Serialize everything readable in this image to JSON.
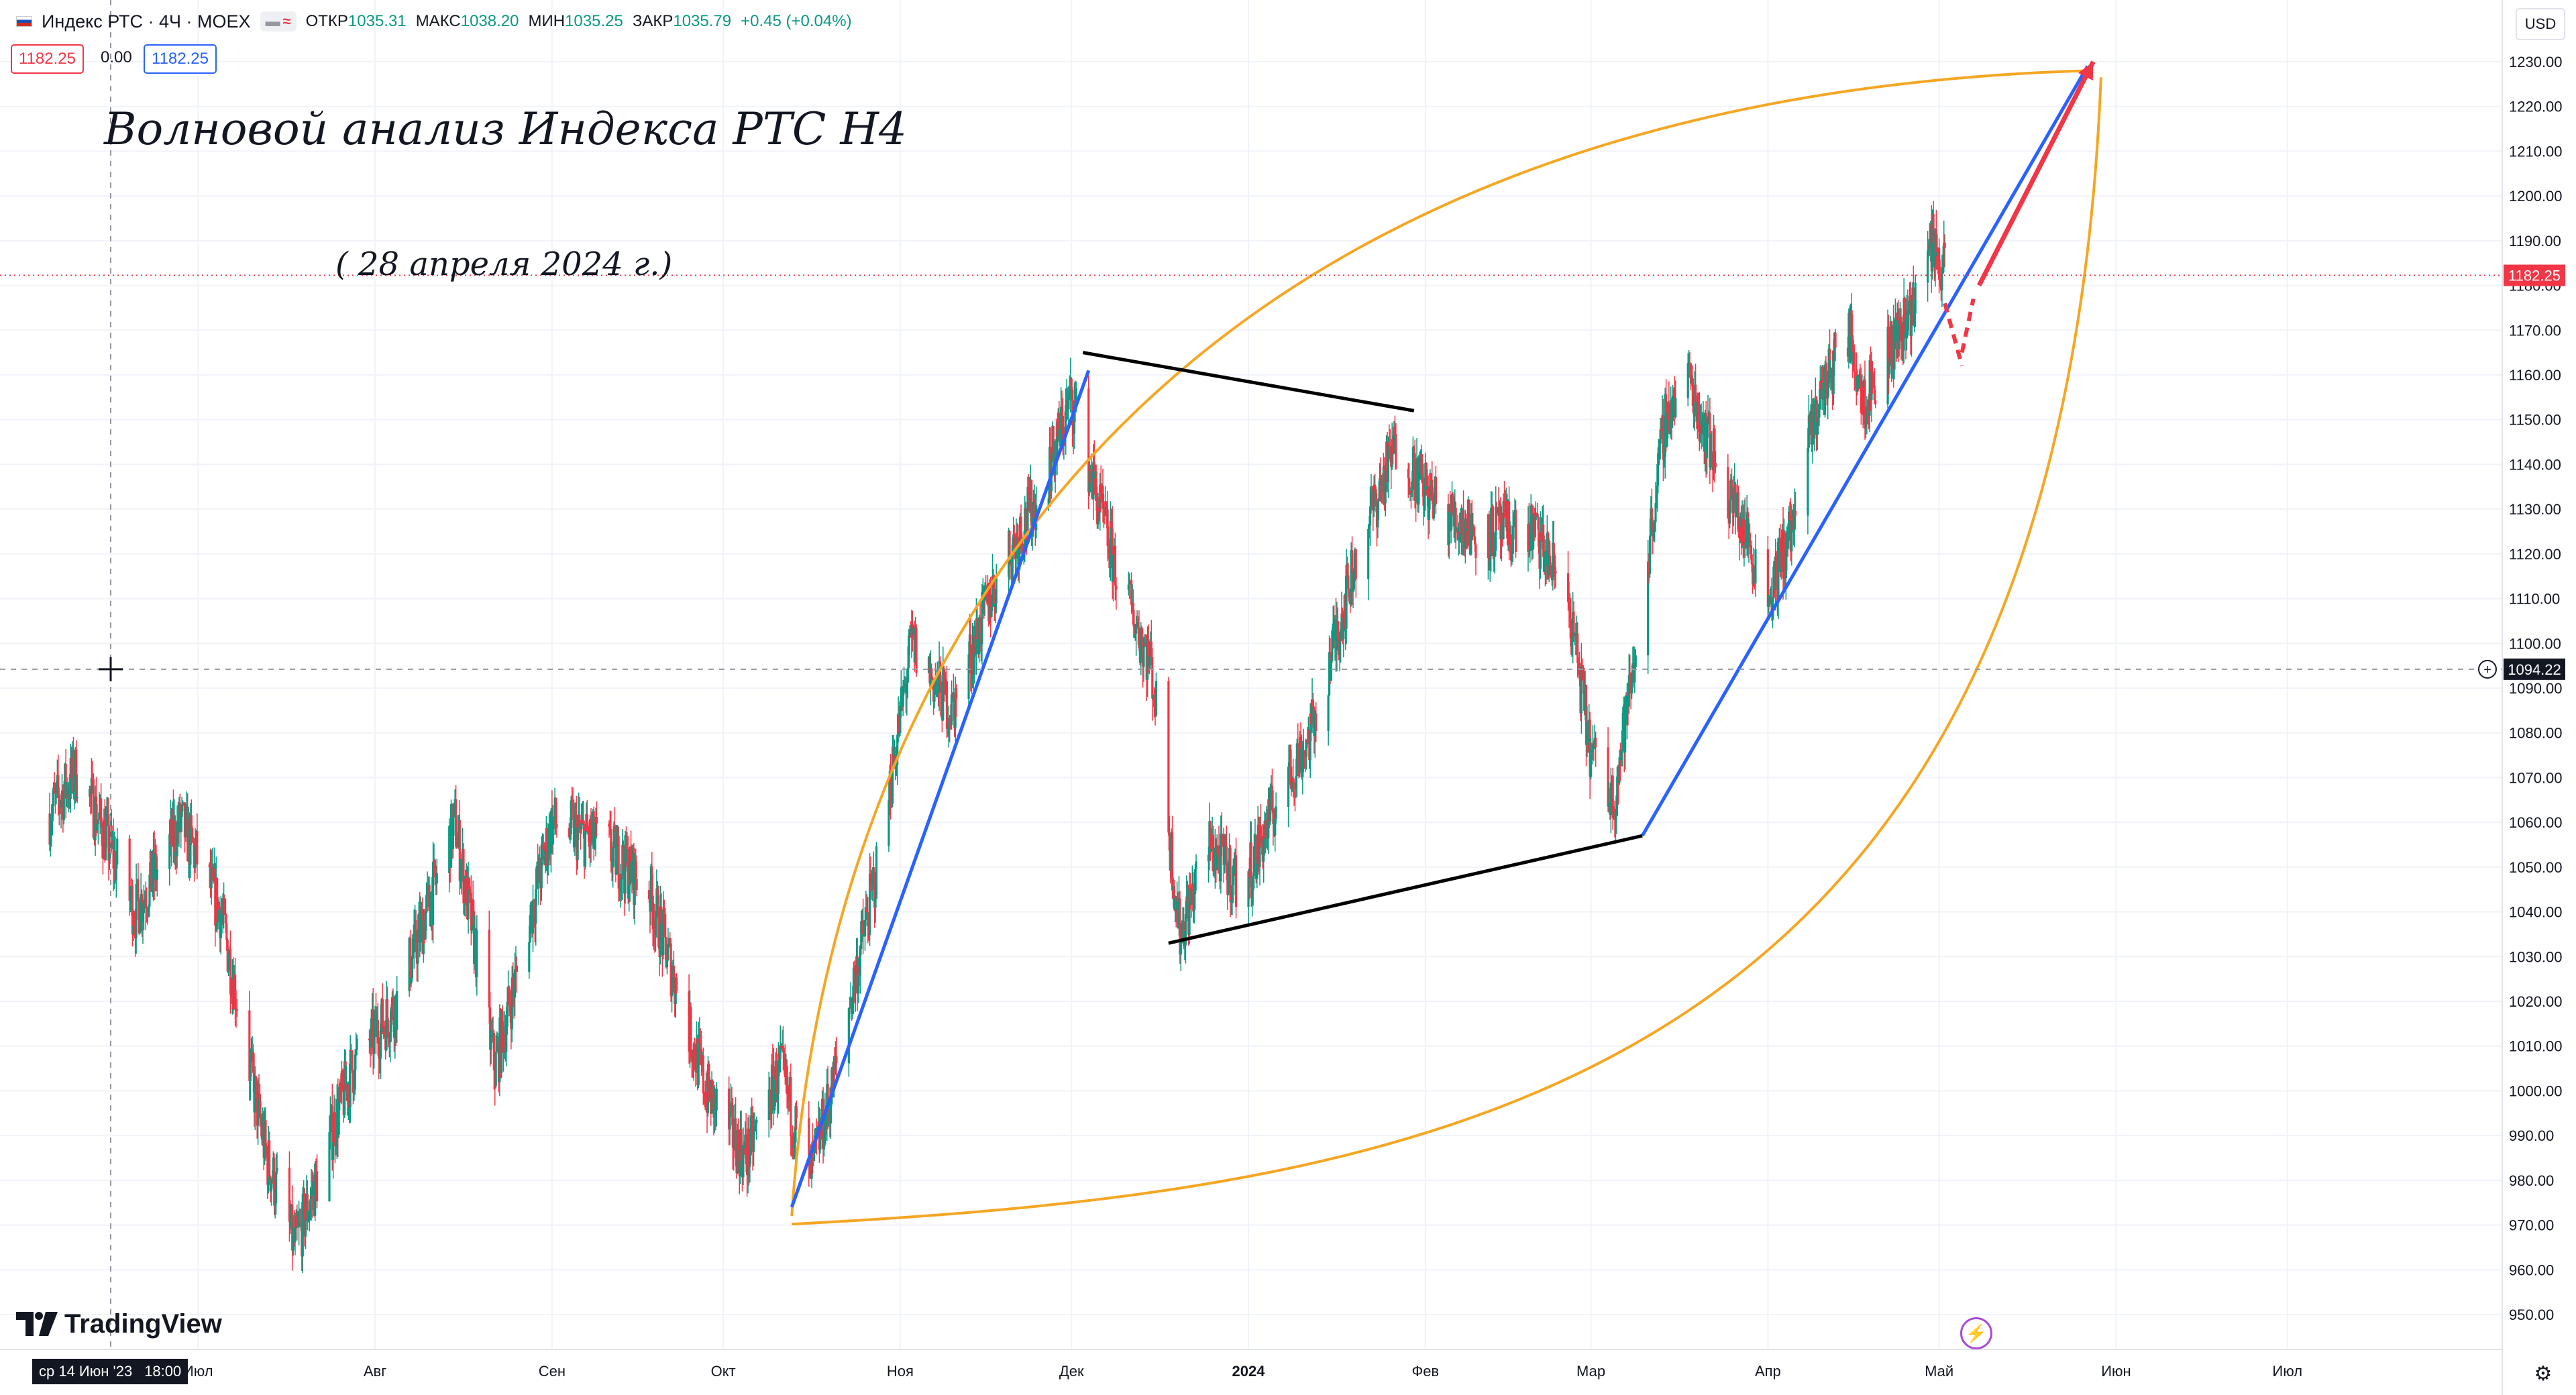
{
  "header": {
    "symbol": "Индекс РТС · 4Ч · MOEX",
    "open_label": "ОТКР",
    "open": "1035.31",
    "high_label": "МАКС",
    "high": "1038.20",
    "low_label": "МИН",
    "low": "1035.25",
    "close_label": "ЗАКР",
    "close": "1035.79",
    "change": "+0.45 (+0.04%)",
    "chip_icons": [
      "minus-icon",
      "wave-icon"
    ]
  },
  "quote": {
    "bid": "1182.25",
    "spread": "0.00",
    "ask": "1182.25"
  },
  "currency": "USD",
  "logo_text": "TradingView",
  "cursor_date": {
    "date": "ср 14 Июн '23",
    "time": "18:00"
  },
  "icons": {
    "settings": "gear-icon",
    "alert": "lightning-icon",
    "crosshair": "crosshair-icon"
  },
  "colors": {
    "up": "#089981",
    "down": "#f23645",
    "channel": "#f5a623",
    "trend": "#2962ff",
    "wedge": "#000000",
    "projection": "#f23645"
  },
  "chart_data": {
    "type": "candlestick",
    "title": "Волновой анализ Индекса РТС  H4",
    "subtitle": "( 28 апреля 2024 г.)",
    "x_tick_labels": [
      "Июл",
      "Авг",
      "Сен",
      "Окт",
      "Ноя",
      "Дек",
      "2024",
      "Фев",
      "Мар",
      "Апр",
      "Май",
      "Июн",
      "Июл"
    ],
    "y_tick_labels": [
      "950.00",
      "960.00",
      "970.00",
      "980.00",
      "990.00",
      "1000.00",
      "1010.00",
      "1020.00",
      "1030.00",
      "1040.00",
      "1050.00",
      "1060.00",
      "1070.00",
      "1080.00",
      "1090.00",
      "1100.00",
      "1110.00",
      "1120.00",
      "1130.00",
      "1140.00",
      "1150.00",
      "1160.00",
      "1170.00",
      "1180.00",
      "1190.00",
      "1200.00",
      "1210.00",
      "1220.00",
      "1230.00"
    ],
    "ylim": [
      945,
      1235
    ],
    "x_start": "2023-06-01",
    "current_price_label": "1182.25",
    "crosshair_price_label": "1094.22",
    "approximate_price_path": [
      {
        "date": "2023-06-05",
        "price": 1062
      },
      {
        "date": "2023-06-10",
        "price": 1072
      },
      {
        "date": "2023-06-20",
        "price": 1040
      },
      {
        "date": "2023-06-28",
        "price": 1060
      },
      {
        "date": "2023-07-05",
        "price": 1040
      },
      {
        "date": "2023-07-13",
        "price": 985
      },
      {
        "date": "2023-07-18",
        "price": 965
      },
      {
        "date": "2023-07-28",
        "price": 1005
      },
      {
        "date": "2023-08-05",
        "price": 1020
      },
      {
        "date": "2023-08-15",
        "price": 1060
      },
      {
        "date": "2023-08-22",
        "price": 1005
      },
      {
        "date": "2023-09-01",
        "price": 1060
      },
      {
        "date": "2023-09-10",
        "price": 1055
      },
      {
        "date": "2023-09-18",
        "price": 1045
      },
      {
        "date": "2023-09-28",
        "price": 1000
      },
      {
        "date": "2023-10-05",
        "price": 985
      },
      {
        "date": "2023-10-11",
        "price": 1005
      },
      {
        "date": "2023-10-16",
        "price": 980
      },
      {
        "date": "2023-10-20",
        "price": 1000
      },
      {
        "date": "2023-10-28",
        "price": 1050
      },
      {
        "date": "2023-11-03",
        "price": 1100
      },
      {
        "date": "2023-11-10",
        "price": 1085
      },
      {
        "date": "2023-11-18",
        "price": 1115
      },
      {
        "date": "2023-11-26",
        "price": 1135
      },
      {
        "date": "2023-12-01",
        "price": 1155
      },
      {
        "date": "2023-12-08",
        "price": 1120
      },
      {
        "date": "2023-12-15",
        "price": 1095
      },
      {
        "date": "2023-12-20",
        "price": 1035
      },
      {
        "date": "2023-12-25",
        "price": 1055
      },
      {
        "date": "2023-12-31",
        "price": 1045
      },
      {
        "date": "2024-01-06",
        "price": 1065
      },
      {
        "date": "2024-01-12",
        "price": 1080
      },
      {
        "date": "2024-01-20",
        "price": 1120
      },
      {
        "date": "2024-01-27",
        "price": 1145
      },
      {
        "date": "2024-02-03",
        "price": 1130
      },
      {
        "date": "2024-02-10",
        "price": 1125
      },
      {
        "date": "2024-02-20",
        "price": 1125
      },
      {
        "date": "2024-02-26",
        "price": 1110
      },
      {
        "date": "2024-03-01",
        "price": 1075
      },
      {
        "date": "2024-03-05",
        "price": 1065
      },
      {
        "date": "2024-03-09",
        "price": 1100
      },
      {
        "date": "2024-03-14",
        "price": 1150
      },
      {
        "date": "2024-03-18",
        "price": 1160
      },
      {
        "date": "2024-03-23",
        "price": 1140
      },
      {
        "date": "2024-03-28",
        "price": 1125
      },
      {
        "date": "2024-04-01",
        "price": 1110
      },
      {
        "date": "2024-04-05",
        "price": 1125
      },
      {
        "date": "2024-04-10",
        "price": 1155
      },
      {
        "date": "2024-04-15",
        "price": 1170
      },
      {
        "date": "2024-04-18",
        "price": 1155
      },
      {
        "date": "2024-04-22",
        "price": 1165
      },
      {
        "date": "2024-04-26",
        "price": 1175
      },
      {
        "date": "2024-04-30",
        "price": 1190
      },
      {
        "date": "2024-05-02",
        "price": 1182
      }
    ],
    "drawings": {
      "blue_lines": [
        [
          {
            "date": "2023-10-13",
            "price": 974
          },
          {
            "date": "2023-12-04",
            "price": 1161
          }
        ],
        [
          {
            "date": "2024-03-10",
            "price": 1057
          },
          {
            "date": "2024-05-27",
            "price": 1229
          }
        ]
      ],
      "black_lines": [
        [
          {
            "date": "2023-12-03",
            "price": 1165
          },
          {
            "date": "2024-01-30",
            "price": 1152
          }
        ],
        [
          {
            "date": "2023-12-18",
            "price": 1033
          },
          {
            "date": "2024-03-10",
            "price": 1057
          }
        ]
      ],
      "red_arrow": [
        {
          "date": "2024-05-08",
          "price": 1180
        },
        {
          "date": "2024-05-28",
          "price": 1230
        }
      ],
      "red_dashed": [
        [
          {
            "date": "2024-05-02",
            "price": 1176
          },
          {
            "date": "2024-05-05",
            "price": 1162
          }
        ],
        [
          {
            "date": "2024-05-05",
            "price": 1165
          },
          {
            "date": "2024-05-07",
            "price": 1177
          }
        ]
      ],
      "orange_channel_start": {
        "date": "2023-10-13",
        "price": 972
      },
      "orange_channel_end": {
        "date": "2024-05-27",
        "price": 1228
      }
    }
  }
}
